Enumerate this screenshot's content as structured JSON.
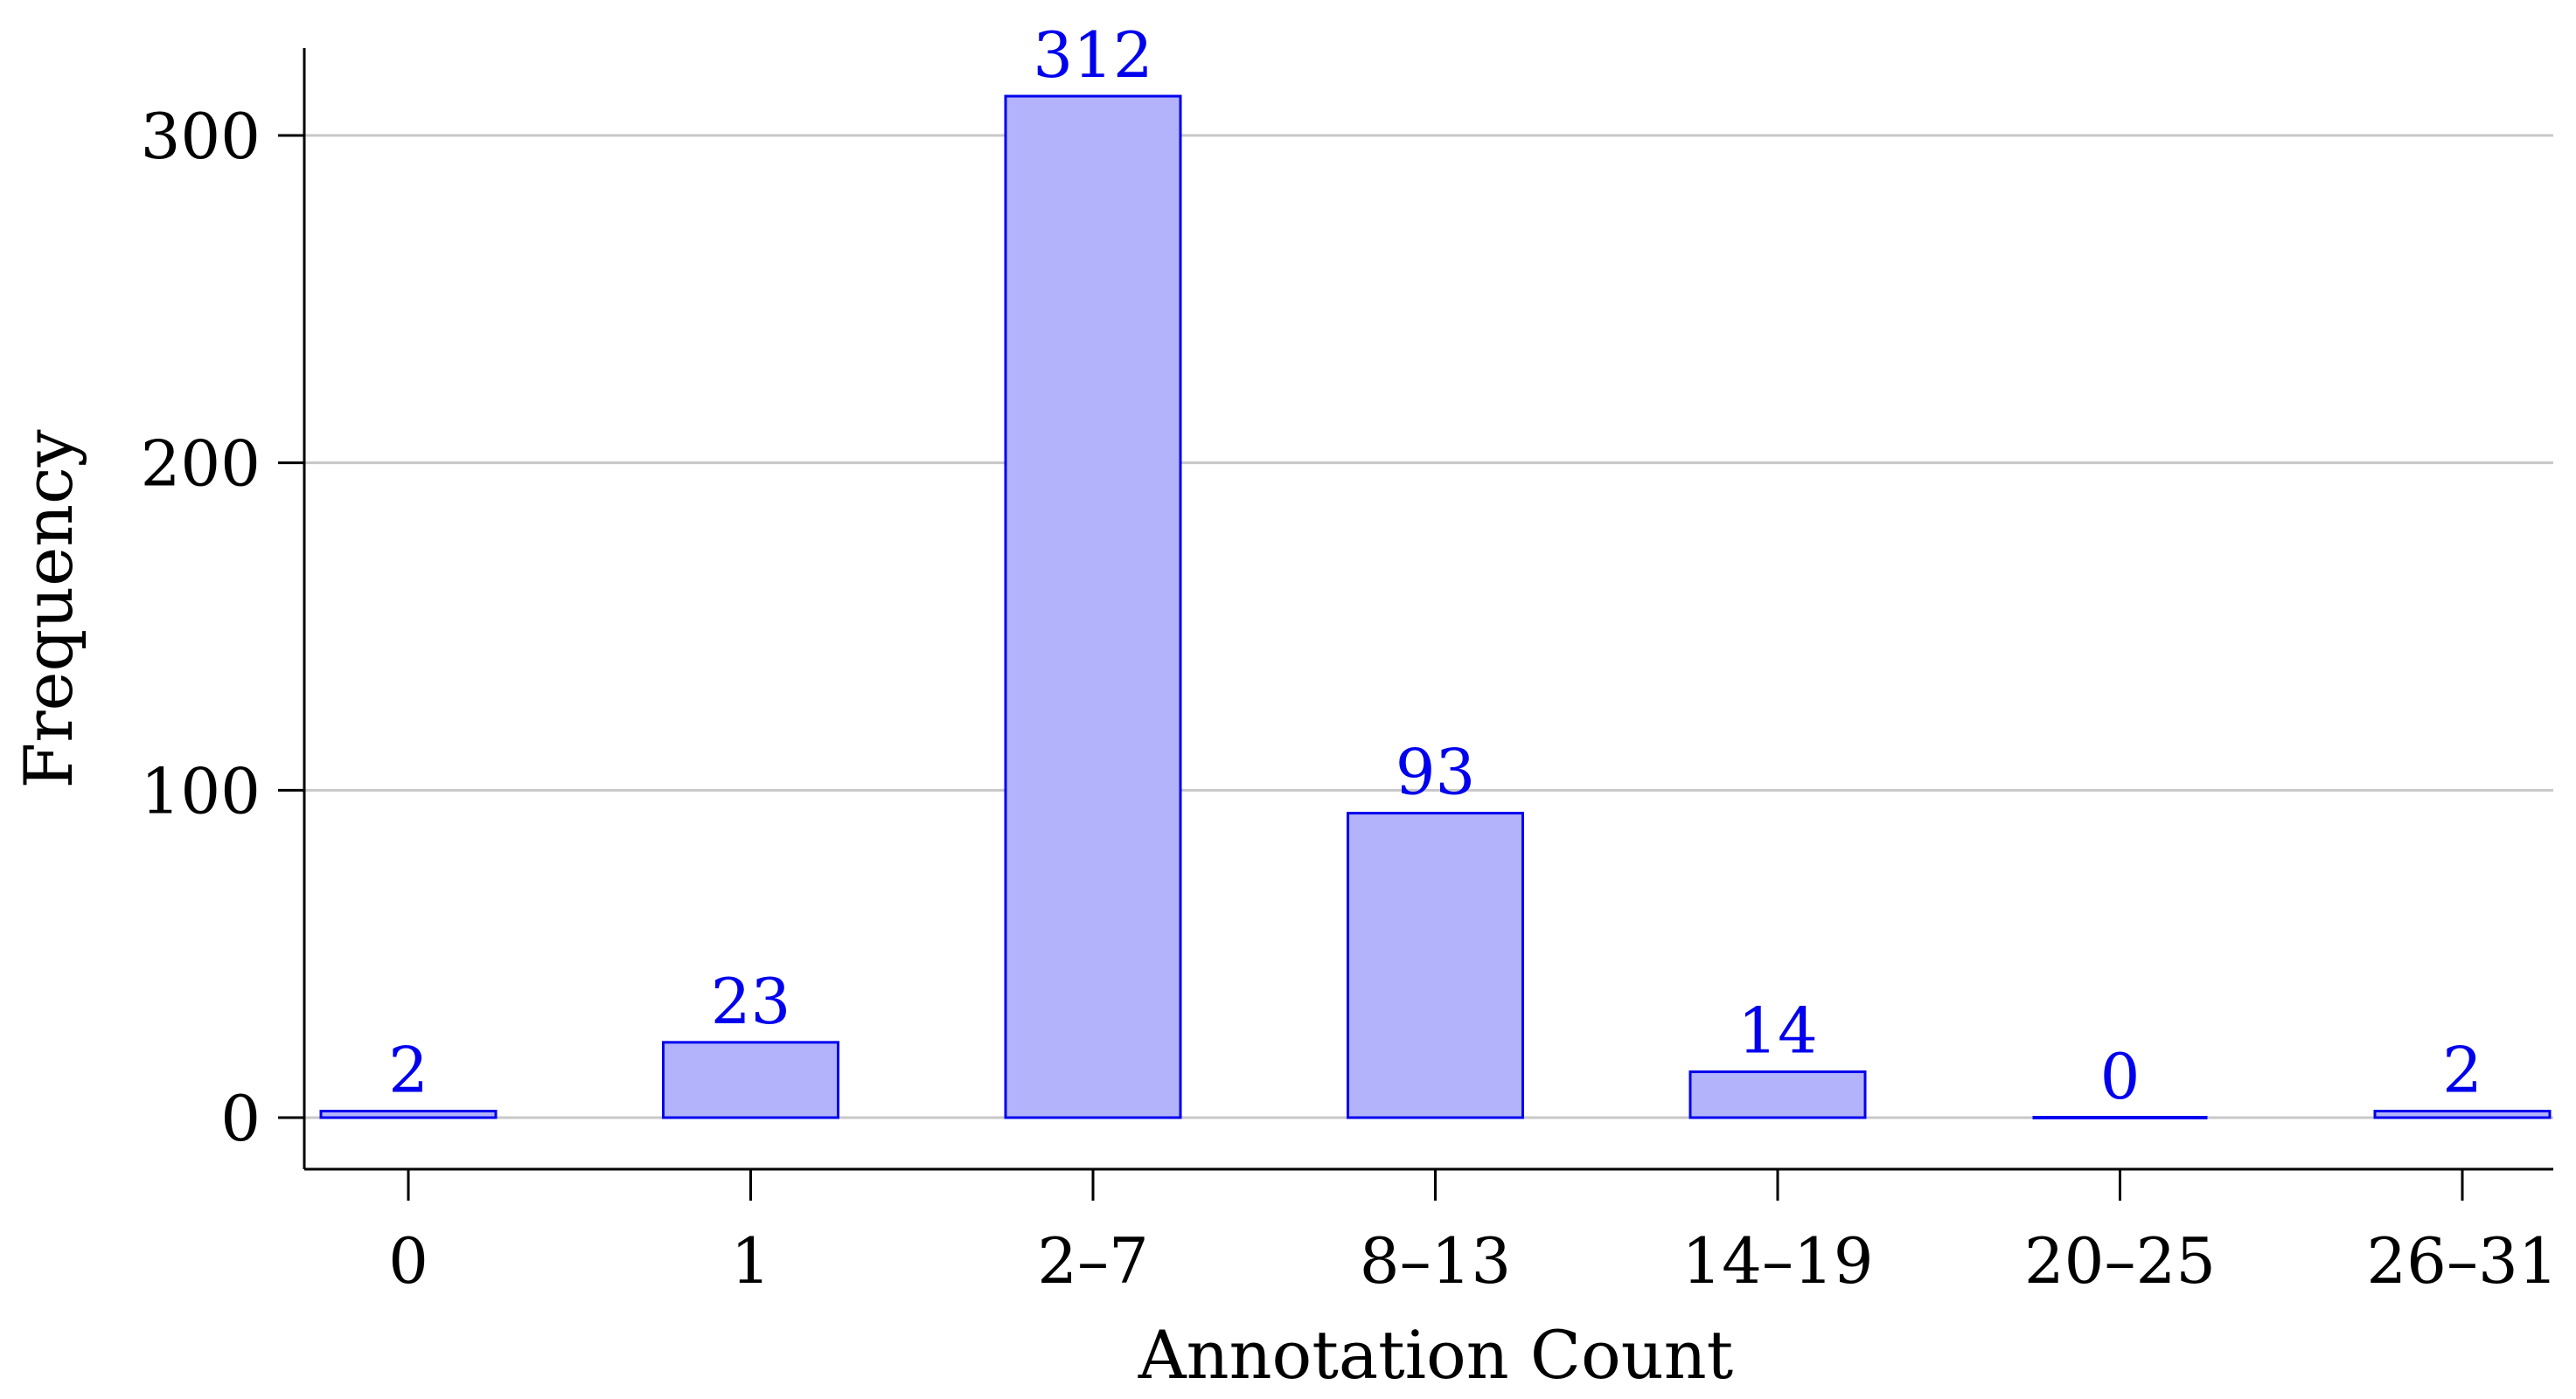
{
  "chart_data": {
    "type": "bar",
    "title": "",
    "xlabel": "Annotation Count",
    "ylabel": "Frequency",
    "categories": [
      "0",
      "1",
      "2–7",
      "8–13",
      "14–19",
      "20–25",
      "26–31"
    ],
    "values": [
      2,
      23,
      312,
      93,
      14,
      0,
      2
    ],
    "data_labels": [
      "2",
      "23",
      "312",
      "93",
      "14",
      "0",
      "2"
    ],
    "ylim": [
      -15,
      327
    ],
    "yticks": [
      0,
      100,
      200,
      300
    ],
    "ytick_labels": [
      "0",
      "100",
      "200",
      "300"
    ],
    "grid": "horizontal",
    "legend": "none",
    "colors": {
      "bar_fill": "#b3b3fb",
      "bar_stroke": "#0000ee",
      "data_label": "#0000ee",
      "grid": "#c8c8c8",
      "axis": "#000000"
    }
  }
}
